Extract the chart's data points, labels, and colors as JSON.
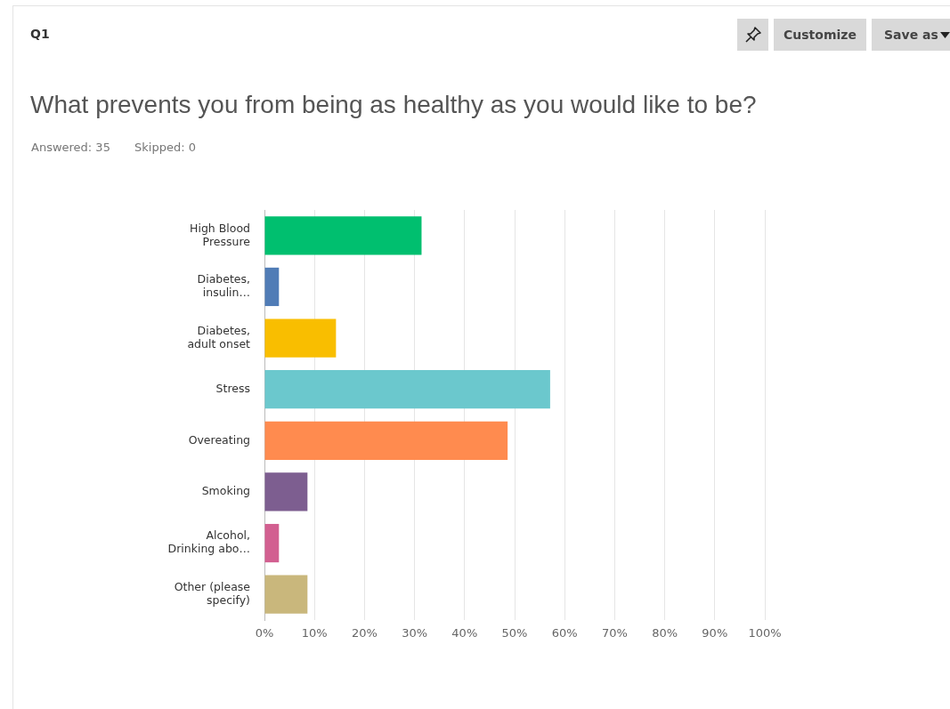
{
  "chart_data": {
    "type": "bar",
    "orientation": "horizontal",
    "title": "What prevents you from being as healthy as you would like to be?",
    "annotations": [
      "Q1",
      "Answered: 35",
      "Skipped: 0",
      "Customize",
      "Save as"
    ],
    "categories": [
      "High Blood Pressure",
      "Diabetes, insulin…",
      "Diabetes, adult onset",
      "Stress",
      "Overeating",
      "Smoking",
      "Alcohol, Drinking abo…",
      "Other (please specify)"
    ],
    "values": [
      31.4,
      2.9,
      14.3,
      57.1,
      48.6,
      8.6,
      2.9,
      8.6
    ],
    "colors": [
      "#00bf6f",
      "#507cb6",
      "#f9be00",
      "#6bc8cd",
      "#ff8b4f",
      "#7d5e90",
      "#d25f90",
      "#c9b77c"
    ],
    "xlim": [
      0,
      100
    ],
    "xticks": [
      {
        "value": 0,
        "label": "0%"
      },
      {
        "value": 10,
        "label": "10%"
      },
      {
        "value": 20,
        "label": "20%"
      },
      {
        "value": 30,
        "label": "30%"
      },
      {
        "value": 40,
        "label": "40%"
      },
      {
        "value": 50,
        "label": "50%"
      },
      {
        "value": 60,
        "label": "60%"
      },
      {
        "value": 70,
        "label": "70%"
      },
      {
        "value": 80,
        "label": "80%"
      },
      {
        "value": 90,
        "label": "90%"
      },
      {
        "value": 100,
        "label": "100%"
      }
    ],
    "grid": "x",
    "legend": false
  }
}
